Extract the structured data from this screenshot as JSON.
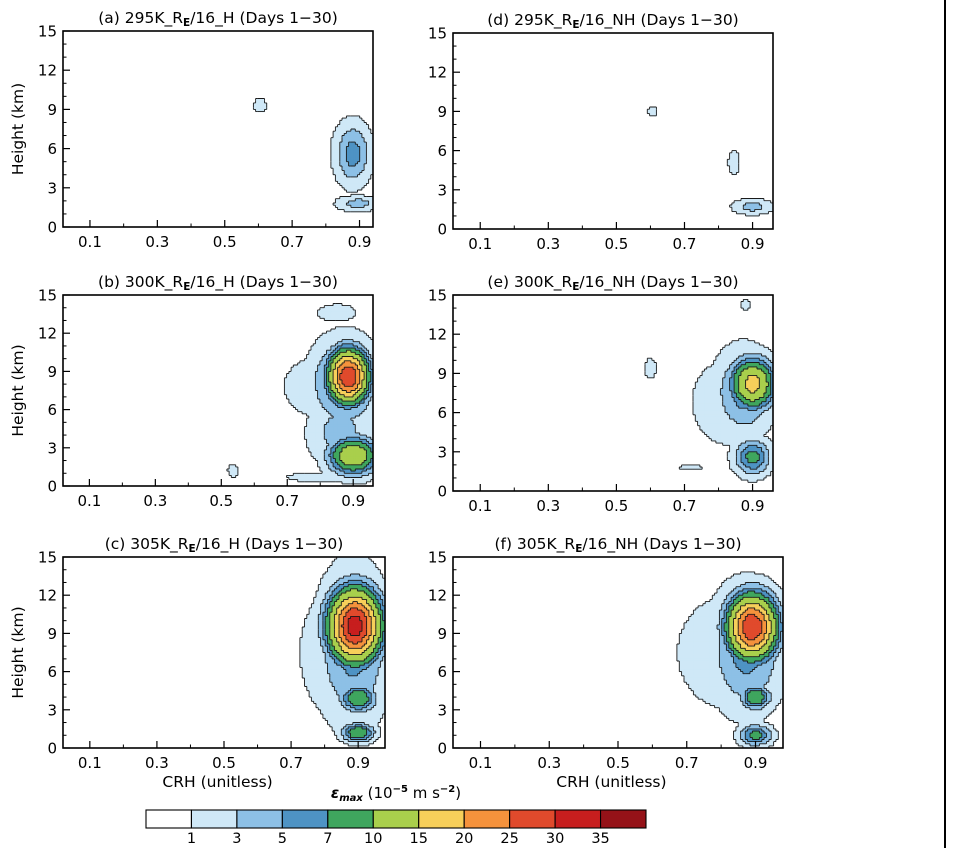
{
  "chart_data": [
    {
      "type": "filled-contour",
      "panel": "a",
      "title": {
        "prefix": "(a) 295K_R",
        "sub": "E",
        "suffix": "/16_H (Days 1−30)"
      },
      "xlabel": "",
      "ylabel": "Height (km)",
      "xlim": [
        0.02,
        0.94
      ],
      "ylim": [
        0,
        15
      ],
      "xticks": [
        "0.1",
        "0.3",
        "0.5",
        "0.7",
        "0.9"
      ],
      "yticks": [
        "0",
        "3",
        "6",
        "9",
        "12",
        "15"
      ],
      "blobs": [
        {
          "x": 0.605,
          "y": 9.3,
          "rx": 0.022,
          "ry": 0.65,
          "peak": 2
        },
        {
          "x": 0.88,
          "y": 5.6,
          "rx": 0.05,
          "ry": 2.2,
          "peak": 6
        },
        {
          "x": 0.895,
          "y": 1.8,
          "rx": 0.06,
          "ry": 0.55,
          "peak": 4
        }
      ]
    },
    {
      "type": "filled-contour",
      "panel": "b",
      "title": {
        "prefix": "(b) 300K_R",
        "sub": "E",
        "suffix": "/16_H (Days 1−30)"
      },
      "xlabel": "",
      "ylabel": "Height (km)",
      "xlim": [
        0.02,
        0.96
      ],
      "ylim": [
        0,
        15
      ],
      "xticks": [
        "0.1",
        "0.3",
        "0.5",
        "0.7",
        "0.9"
      ],
      "yticks": [
        "0",
        "3",
        "6",
        "9",
        "12",
        "15"
      ],
      "blobs": [
        {
          "x": 0.84,
          "y": 7.8,
          "rx": 0.18,
          "ry": 3.2,
          "peak": 2
        },
        {
          "x": 0.875,
          "y": 8.2,
          "rx": 0.09,
          "ry": 3.0,
          "peak": 8
        },
        {
          "x": 0.885,
          "y": 8.6,
          "rx": 0.055,
          "ry": 1.9,
          "peak": 30
        },
        {
          "x": 0.9,
          "y": 2.4,
          "rx": 0.07,
          "ry": 1.4,
          "peak": 14
        },
        {
          "x": 0.86,
          "y": 4.2,
          "rx": 0.09,
          "ry": 2.6,
          "peak": 4
        },
        {
          "x": 0.85,
          "y": 13.6,
          "rx": 0.07,
          "ry": 0.8,
          "peak": 2
        },
        {
          "x": 0.535,
          "y": 1.2,
          "rx": 0.018,
          "ry": 0.6,
          "peak": 2
        },
        {
          "x": 0.8,
          "y": 0.7,
          "rx": 0.12,
          "ry": 0.45,
          "peak": 2
        }
      ]
    },
    {
      "type": "filled-contour",
      "panel": "c",
      "title": {
        "prefix": "(c) 305K_R",
        "sub": "E",
        "suffix": "/16_H (Days 1−30)"
      },
      "xlabel": "CRH (unitless)",
      "ylabel": "Height (km)",
      "xlim": [
        0.02,
        0.98
      ],
      "ylim": [
        0,
        15
      ],
      "xticks": [
        "0.1",
        "0.3",
        "0.5",
        "0.7",
        "0.9"
      ],
      "yticks": [
        "0",
        "3",
        "6",
        "9",
        "12",
        "15"
      ],
      "blobs": [
        {
          "x": 0.86,
          "y": 7.5,
          "rx": 0.16,
          "ry": 6.5,
          "peak": 2
        },
        {
          "x": 0.885,
          "y": 8.0,
          "rx": 0.1,
          "ry": 5.5,
          "peak": 6
        },
        {
          "x": 0.89,
          "y": 9.6,
          "rx": 0.07,
          "ry": 2.6,
          "peak": 33
        },
        {
          "x": 0.9,
          "y": 3.9,
          "rx": 0.05,
          "ry": 1.0,
          "peak": 10
        },
        {
          "x": 0.9,
          "y": 1.2,
          "rx": 0.045,
          "ry": 0.7,
          "peak": 10
        }
      ]
    },
    {
      "type": "filled-contour",
      "panel": "d",
      "title": {
        "prefix": "(d) 295K_R",
        "sub": "E",
        "suffix": "/16_NH (Days 1−30)"
      },
      "xlabel": "",
      "ylabel": "",
      "xlim": [
        0.02,
        0.96
      ],
      "ylim": [
        0,
        15
      ],
      "xticks": [
        "0.1",
        "0.3",
        "0.5",
        "0.7",
        "0.9"
      ],
      "yticks": [
        "0",
        "3",
        "6",
        "9",
        "12",
        "15"
      ],
      "blobs": [
        {
          "x": 0.605,
          "y": 9.0,
          "rx": 0.015,
          "ry": 0.5,
          "peak": 2
        },
        {
          "x": 0.845,
          "y": 5.1,
          "rx": 0.02,
          "ry": 1.1,
          "peak": 2
        },
        {
          "x": 0.9,
          "y": 1.7,
          "rx": 0.055,
          "ry": 0.55,
          "peak": 4
        }
      ]
    },
    {
      "type": "filled-contour",
      "panel": "e",
      "title": {
        "prefix": "(e) 300K_R",
        "sub": "E",
        "suffix": "/16_NH (Days 1−30)"
      },
      "xlabel": "",
      "ylabel": "",
      "xlim": [
        0.02,
        0.96
      ],
      "ylim": [
        0,
        15
      ],
      "xticks": [
        "0.1",
        "0.3",
        "0.5",
        "0.7",
        "0.9"
      ],
      "yticks": [
        "0",
        "3",
        "6",
        "9",
        "12",
        "15"
      ],
      "blobs": [
        {
          "x": 0.84,
          "y": 6.8,
          "rx": 0.14,
          "ry": 4.0,
          "peak": 2
        },
        {
          "x": 0.875,
          "y": 7.6,
          "rx": 0.08,
          "ry": 3.0,
          "peak": 6
        },
        {
          "x": 0.9,
          "y": 8.2,
          "rx": 0.06,
          "ry": 1.8,
          "peak": 17
        },
        {
          "x": 0.9,
          "y": 2.6,
          "rx": 0.05,
          "ry": 1.3,
          "peak": 8
        },
        {
          "x": 0.6,
          "y": 9.4,
          "rx": 0.02,
          "ry": 0.9,
          "peak": 2
        },
        {
          "x": 0.88,
          "y": 14.3,
          "rx": 0.015,
          "ry": 0.5,
          "peak": 2
        },
        {
          "x": 0.72,
          "y": 1.8,
          "rx": 0.04,
          "ry": 0.25,
          "peak": 2
        }
      ]
    },
    {
      "type": "filled-contour",
      "panel": "f",
      "title": {
        "prefix": "(f) 305K_R",
        "sub": "E",
        "suffix": "/16_NH (Days 1−30)"
      },
      "xlabel": "CRH (unitless)",
      "ylabel": "",
      "xlim": [
        0.02,
        0.98
      ],
      "ylim": [
        0,
        15
      ],
      "xticks": [
        "0.1",
        "0.3",
        "0.5",
        "0.7",
        "0.9"
      ],
      "yticks": [
        "0",
        "3",
        "6",
        "9",
        "12",
        "15"
      ],
      "blobs": [
        {
          "x": 0.84,
          "y": 7.5,
          "rx": 0.2,
          "ry": 5.5,
          "peak": 2
        },
        {
          "x": 0.875,
          "y": 7.8,
          "rx": 0.1,
          "ry": 4.5,
          "peak": 6
        },
        {
          "x": 0.89,
          "y": 9.5,
          "rx": 0.065,
          "ry": 2.3,
          "peak": 30
        },
        {
          "x": 0.9,
          "y": 4.0,
          "rx": 0.04,
          "ry": 0.9,
          "peak": 10
        },
        {
          "x": 0.9,
          "y": 1.0,
          "rx": 0.045,
          "ry": 0.8,
          "peak": 8
        }
      ]
    }
  ],
  "colorbar": {
    "label": {
      "symbol": "ε",
      "sub": "max",
      "text": " (10",
      "sup1": "−5",
      "text2": " m s",
      "sup2": "−2",
      "text3": ")"
    },
    "levels": [
      1,
      3,
      5,
      7,
      10,
      15,
      20,
      25,
      30,
      35
    ],
    "tick_labels": [
      "1",
      "3",
      "5",
      "7",
      "10",
      "15",
      "20",
      "25",
      "30",
      "35"
    ],
    "colors": [
      "#ffffff",
      "#cfe8f7",
      "#8dc0e6",
      "#4e93c4",
      "#3fa65e",
      "#a9cf4c",
      "#f7cf5a",
      "#f5923c",
      "#e04a2c",
      "#c71e1e",
      "#951218"
    ]
  }
}
